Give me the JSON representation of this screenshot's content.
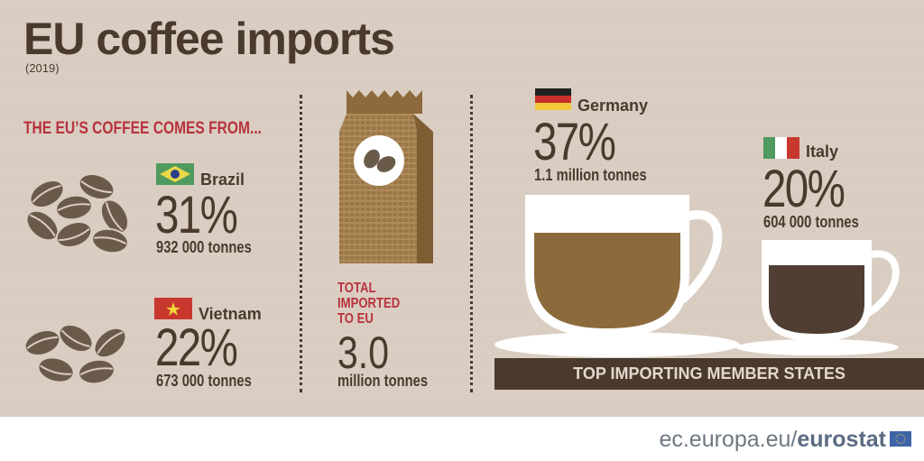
{
  "title": "EU coffee imports",
  "year": "(2019)",
  "heading": "THE EU’S COFFEE COMES FROM...",
  "origins": [
    {
      "country": "Brazil",
      "percent": "31%",
      "amount": "932 000 tonnes"
    },
    {
      "country": "Vietnam",
      "percent": "22%",
      "amount": "673 000 tonnes"
    }
  ],
  "total": {
    "line1": "TOTAL",
    "line2": "IMPORTED",
    "line3": "TO EU",
    "value": "3.0",
    "unit": "million tonnes"
  },
  "importers": [
    {
      "country": "Germany",
      "percent": "37%",
      "amount": "1.1 million tonnes"
    },
    {
      "country": "Italy",
      "percent": "20%",
      "amount": "604 000 tonnes"
    }
  ],
  "bar_label": "TOP IMPORTING MEMBER STATES",
  "footer": {
    "domain": "ec.europa.eu/",
    "brand": "eurostat"
  },
  "colors": {
    "background": "#d9ccc0",
    "text": "#4a3a2e",
    "accent": "#b8323d",
    "coffee": "#8d6a3c"
  }
}
